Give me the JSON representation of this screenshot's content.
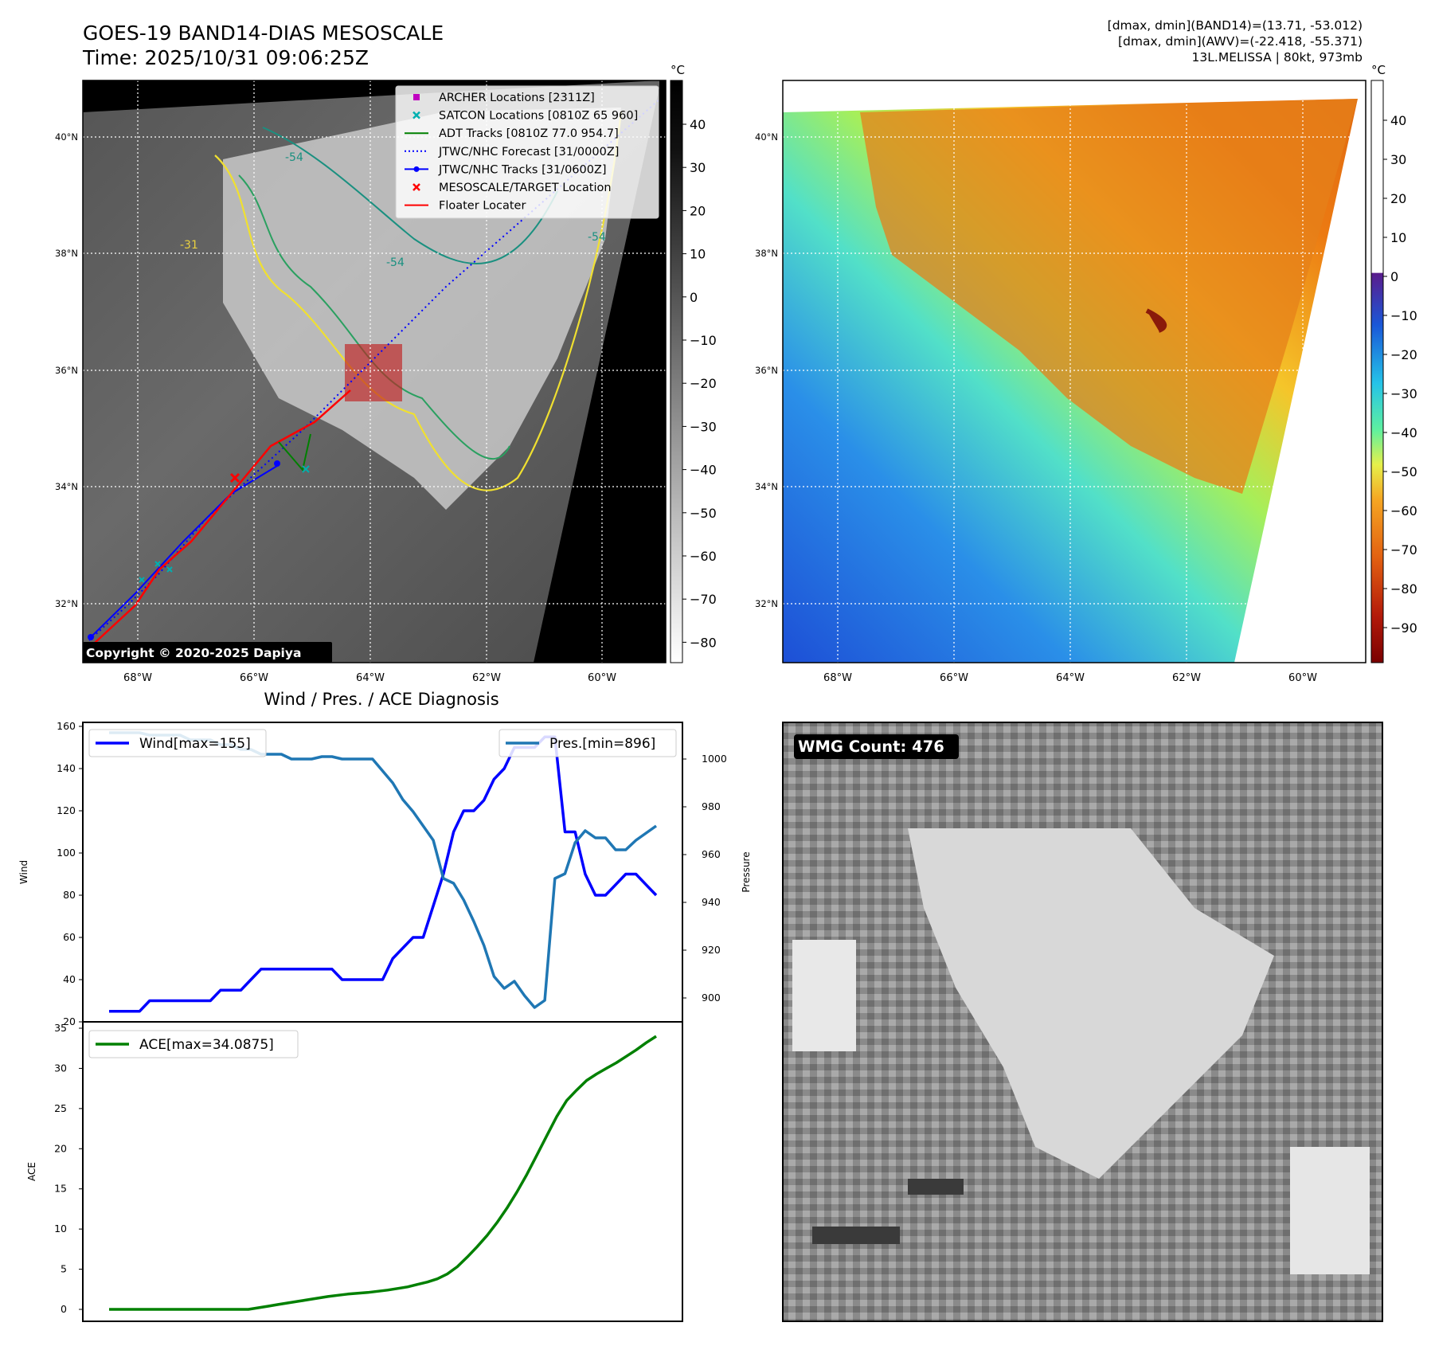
{
  "header": {
    "title_line1": "GOES-19 BAND14-DIAS MESOSCALE",
    "title_line2": "Time: 2025/10/31 09:06:25Z",
    "info_lines": [
      "[dmax, dmin](BAND14)=(13.71, -53.012)",
      "[dmax, dmin](AWV)=(-22.418, -55.371)",
      "13L.MELISSA | 80kt, 973mb"
    ]
  },
  "map_ir": {
    "lat_labels": [
      "40°N",
      "38°N",
      "36°N",
      "34°N",
      "32°N"
    ],
    "lon_labels": [
      "68°W",
      "66°W",
      "64°W",
      "62°W",
      "60°W"
    ],
    "legend": [
      {
        "label": "ARCHER Locations [2311Z]",
        "color": "#c000c0",
        "marker": "square"
      },
      {
        "label": "SATCON Locations [0810Z 65 960]",
        "color": "#00b0b0",
        "marker": "x"
      },
      {
        "label": "ADT Tracks [0810Z 77.0 954.7]",
        "color": "#008000",
        "marker": "line"
      },
      {
        "label": "JTWC/NHC Forecast [31/0000Z]",
        "color": "#0000ff",
        "marker": "dotted"
      },
      {
        "label": "JTWC/NHC Tracks [31/0600Z]",
        "color": "#0000ff",
        "marker": "line-dot"
      },
      {
        "label": "MESOSCALE/TARGET Location",
        "color": "#ff0000",
        "marker": "x"
      },
      {
        "label": "Floater Locater",
        "color": "#ff0000",
        "marker": "line"
      }
    ],
    "contour_labels": [
      "-54",
      "-31",
      "-54",
      "-54"
    ],
    "copyright": "Copyright © 2020-2025 Dapiya",
    "colorbar": {
      "unit": "°C",
      "ticks": [
        "40",
        "30",
        "20",
        "10",
        "0",
        "−10",
        "−20",
        "−30",
        "−40",
        "−50",
        "−60",
        "−70",
        "−80"
      ]
    }
  },
  "map_awv": {
    "lat_labels": [
      "40°N",
      "38°N",
      "36°N",
      "34°N",
      "32°N"
    ],
    "lon_labels": [
      "68°W",
      "66°W",
      "64°W",
      "62°W",
      "60°W"
    ],
    "colorbar": {
      "unit": "°C",
      "ticks": [
        "40",
        "30",
        "20",
        "10",
        "0",
        "−10",
        "−20",
        "−30",
        "−40",
        "−50",
        "−60",
        "−70",
        "−80",
        "−90"
      ]
    }
  },
  "wmg": {
    "label": "WMG Count: 476"
  },
  "chart_data": [
    {
      "type": "line",
      "title": "Wind / Pres. / ACE Diagnosis",
      "ylabel": "Wind",
      "y2label": "Pressure",
      "ylim": [
        20,
        160
      ],
      "y2lim": [
        890,
        1013
      ],
      "yticks": [
        20,
        40,
        60,
        80,
        100,
        120,
        140,
        160
      ],
      "y2ticks": [
        900,
        920,
        940,
        960,
        980,
        1000
      ],
      "series": [
        {
          "name": "Wind[max=155]",
          "color": "#0000ff",
          "axis": "left",
          "values": [
            25,
            25,
            25,
            25,
            30,
            30,
            30,
            30,
            30,
            30,
            30,
            35,
            35,
            35,
            40,
            45,
            45,
            45,
            45,
            45,
            45,
            45,
            45,
            40,
            40,
            40,
            40,
            40,
            50,
            55,
            60,
            60,
            75,
            90,
            110,
            120,
            120,
            125,
            135,
            140,
            150,
            150,
            150,
            155,
            155,
            110,
            110,
            90,
            80,
            80,
            85,
            90,
            90,
            85,
            80
          ]
        },
        {
          "name": "Pres.[min=896]",
          "color": "#1f77b4",
          "axis": "right",
          "values": [
            1011,
            1011,
            1011,
            1011,
            1010,
            1010,
            1010,
            1010,
            1008,
            1008,
            1008,
            1006,
            1006,
            1004,
            1004,
            1002,
            1002,
            1002,
            1000,
            1000,
            1000,
            1001,
            1001,
            1000,
            1000,
            1000,
            1000,
            995,
            990,
            983,
            978,
            972,
            966,
            950,
            948,
            941,
            932,
            922,
            909,
            904,
            907,
            901,
            896,
            899,
            950,
            952,
            965,
            970,
            967,
            967,
            962,
            962,
            966,
            969,
            972
          ]
        },
        {
          "name": "",
          "color": "#1f77b4",
          "axis": "right",
          "values": []
        }
      ]
    },
    {
      "type": "line",
      "ylabel": "ACE",
      "ylim": [
        -1.5,
        35
      ],
      "yticks": [
        0,
        5,
        10,
        15,
        20,
        25,
        30,
        35
      ],
      "series": [
        {
          "name": "ACE[max=34.0875]",
          "color": "#008000",
          "values": [
            0,
            0,
            0,
            0,
            0,
            0,
            0,
            0,
            0,
            0,
            0,
            0,
            0,
            0,
            0,
            0.2,
            0.4,
            0.6,
            0.8,
            1.0,
            1.2,
            1.4,
            1.6,
            1.75,
            1.9,
            2.0,
            2.1,
            2.25,
            2.4,
            2.6,
            2.8,
            3.1,
            3.4,
            3.8,
            4.4,
            5.3,
            6.5,
            7.8,
            9.2,
            10.8,
            12.6,
            14.6,
            16.8,
            19.2,
            21.6,
            24.0,
            26.0,
            27.3,
            28.5,
            29.3,
            30.0,
            30.7,
            31.5,
            32.3,
            33.2,
            34.0
          ]
        }
      ]
    }
  ]
}
